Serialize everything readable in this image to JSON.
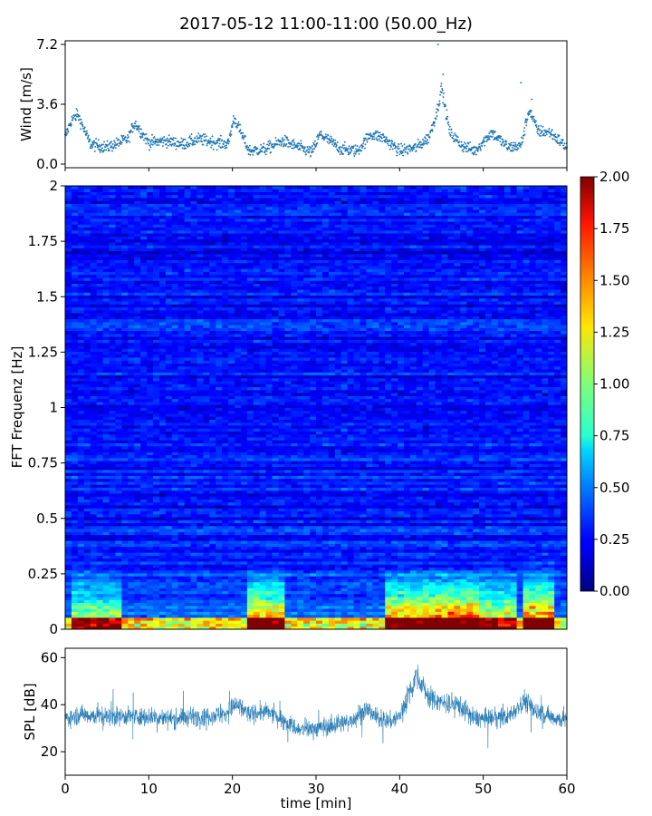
{
  "title": "2017-05-12 11:00-11:00 (50.00_Hz)",
  "chart_data": [
    {
      "type": "scatter",
      "name": "wind-panel",
      "ylabel": "Wind [m/s]",
      "xlim": [
        0,
        60
      ],
      "ylim": [
        0,
        7.2
      ],
      "yticks": [
        0.0,
        3.6,
        7.2
      ],
      "ytick_labels": [
        "0.0",
        "3.6",
        "7.2"
      ],
      "series_color": "#1f77b4",
      "envelope": {
        "x": [
          0,
          0.7,
          1.5,
          3,
          5,
          7.5,
          8.3,
          10,
          12,
          14,
          16,
          18,
          19.5,
          20.2,
          22,
          24,
          26,
          28,
          29.5,
          30.5,
          33,
          35,
          36.5,
          38,
          40,
          42,
          43.5,
          44.5,
          45,
          46,
          47.5,
          49,
          51,
          53,
          54.5,
          55.5,
          56.5,
          58,
          60
        ],
        "y": [
          1.6,
          2.6,
          3.0,
          1.2,
          1.0,
          1.5,
          2.5,
          1.3,
          1.4,
          1.2,
          1.5,
          1.3,
          1.2,
          2.8,
          0.8,
          0.9,
          1.4,
          1.0,
          0.7,
          1.8,
          0.9,
          0.8,
          1.8,
          1.6,
          0.8,
          1.0,
          1.6,
          3.2,
          4.6,
          1.9,
          1.1,
          0.8,
          1.9,
          1.0,
          1.1,
          3.3,
          2.0,
          1.9,
          1.0
        ]
      },
      "peaks": [
        {
          "x": 44.6,
          "y": 7.2
        },
        {
          "x": 45.2,
          "y": 5.4
        },
        {
          "x": 54.5,
          "y": 4.9
        },
        {
          "x": 55.8,
          "y": 3.9
        }
      ]
    },
    {
      "type": "heatmap",
      "name": "spectrogram",
      "ylabel": "FFT Frequenz [Hz]",
      "xlim": [
        0,
        60
      ],
      "ylim": [
        0,
        2
      ],
      "yticks": [
        0,
        0.25,
        0.5,
        0.75,
        1,
        1.25,
        1.5,
        1.75,
        2
      ],
      "ytick_labels": [
        "0",
        "0.25",
        "0.5",
        "0.75",
        "1",
        "1.25",
        "1.5",
        "1.75",
        "2"
      ],
      "colormap": "jet",
      "color_range": [
        0,
        2
      ],
      "colorbar_ticks": [
        "0.00",
        "0.25",
        "0.50",
        "0.75",
        "1.00",
        "1.25",
        "1.50",
        "1.75",
        "2.00"
      ],
      "notes": "Low frequencies (0-0.25 Hz) show high amplitudes (1-2) clustered around 22-26 and 38-58 min; above 0.5 Hz values mostly 0.1-0.5."
    },
    {
      "type": "line",
      "name": "spl-panel",
      "xlabel": "time [min]",
      "ylabel": "SPL [dB]",
      "xlim": [
        0,
        60
      ],
      "ylim": [
        10,
        64
      ],
      "xticks": [
        0,
        10,
        20,
        30,
        40,
        50,
        60
      ],
      "xtick_labels": [
        "0",
        "10",
        "20",
        "30",
        "40",
        "50",
        "60"
      ],
      "yticks": [
        20,
        40,
        60
      ],
      "ytick_labels": [
        "20",
        "40",
        "60"
      ],
      "series_color": "#1f77b4",
      "envelope": {
        "x": [
          0,
          2,
          4,
          7,
          10,
          13,
          16,
          19,
          20.5,
          22,
          24,
          26,
          28,
          30,
          32,
          34,
          36,
          37.5,
          39,
          40,
          41,
          42,
          43.5,
          45,
          47,
          49,
          51,
          53,
          55,
          56,
          58,
          60
        ],
        "mean": [
          34,
          36,
          35,
          35,
          35,
          34,
          35,
          36,
          40,
          36,
          37,
          34,
          29,
          30,
          31,
          33,
          38,
          34,
          33,
          35,
          44,
          53,
          43,
          41,
          40,
          34,
          34,
          35,
          42,
          38,
          35,
          33
        ],
        "spread": [
          5,
          5,
          5,
          5,
          5,
          5,
          5,
          5,
          6,
          5,
          5,
          5,
          5,
          5,
          5,
          5,
          6,
          5,
          5,
          6,
          7,
          6,
          6,
          6,
          6,
          5,
          5,
          5,
          6,
          6,
          5,
          5
        ]
      }
    }
  ]
}
